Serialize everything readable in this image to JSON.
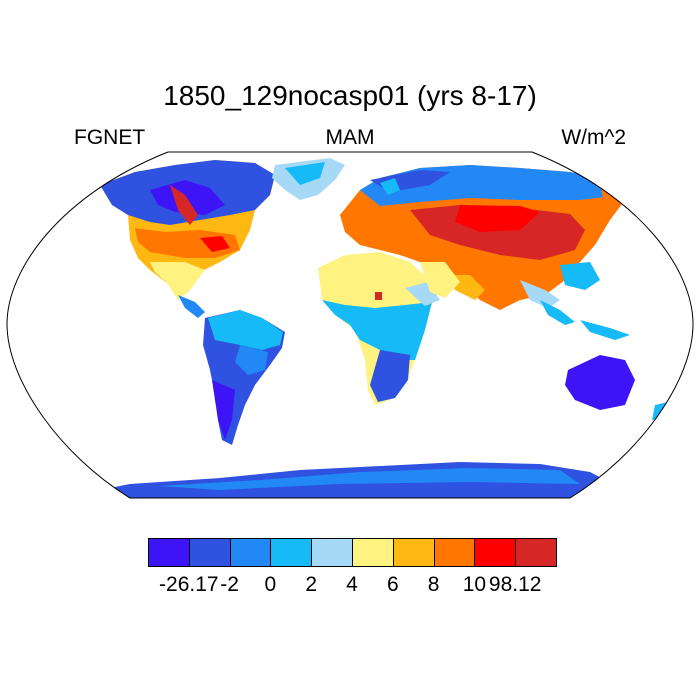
{
  "title": "1850_129nocasp01 (yrs 8-17)",
  "left_label": "FGNET",
  "center_label": "MAM",
  "right_label": "W/m^2",
  "colorbar": {
    "colors": [
      "#3d14f5",
      "#2f52e0",
      "#2188f5",
      "#16baf6",
      "#a6d9f5",
      "#fef281",
      "#ffb712",
      "#ff7600",
      "#fe0000",
      "#d62726"
    ],
    "labels": [
      "-26.17",
      "-2",
      "0",
      "2",
      "4",
      "6",
      "8",
      "10",
      "98.12"
    ]
  }
}
